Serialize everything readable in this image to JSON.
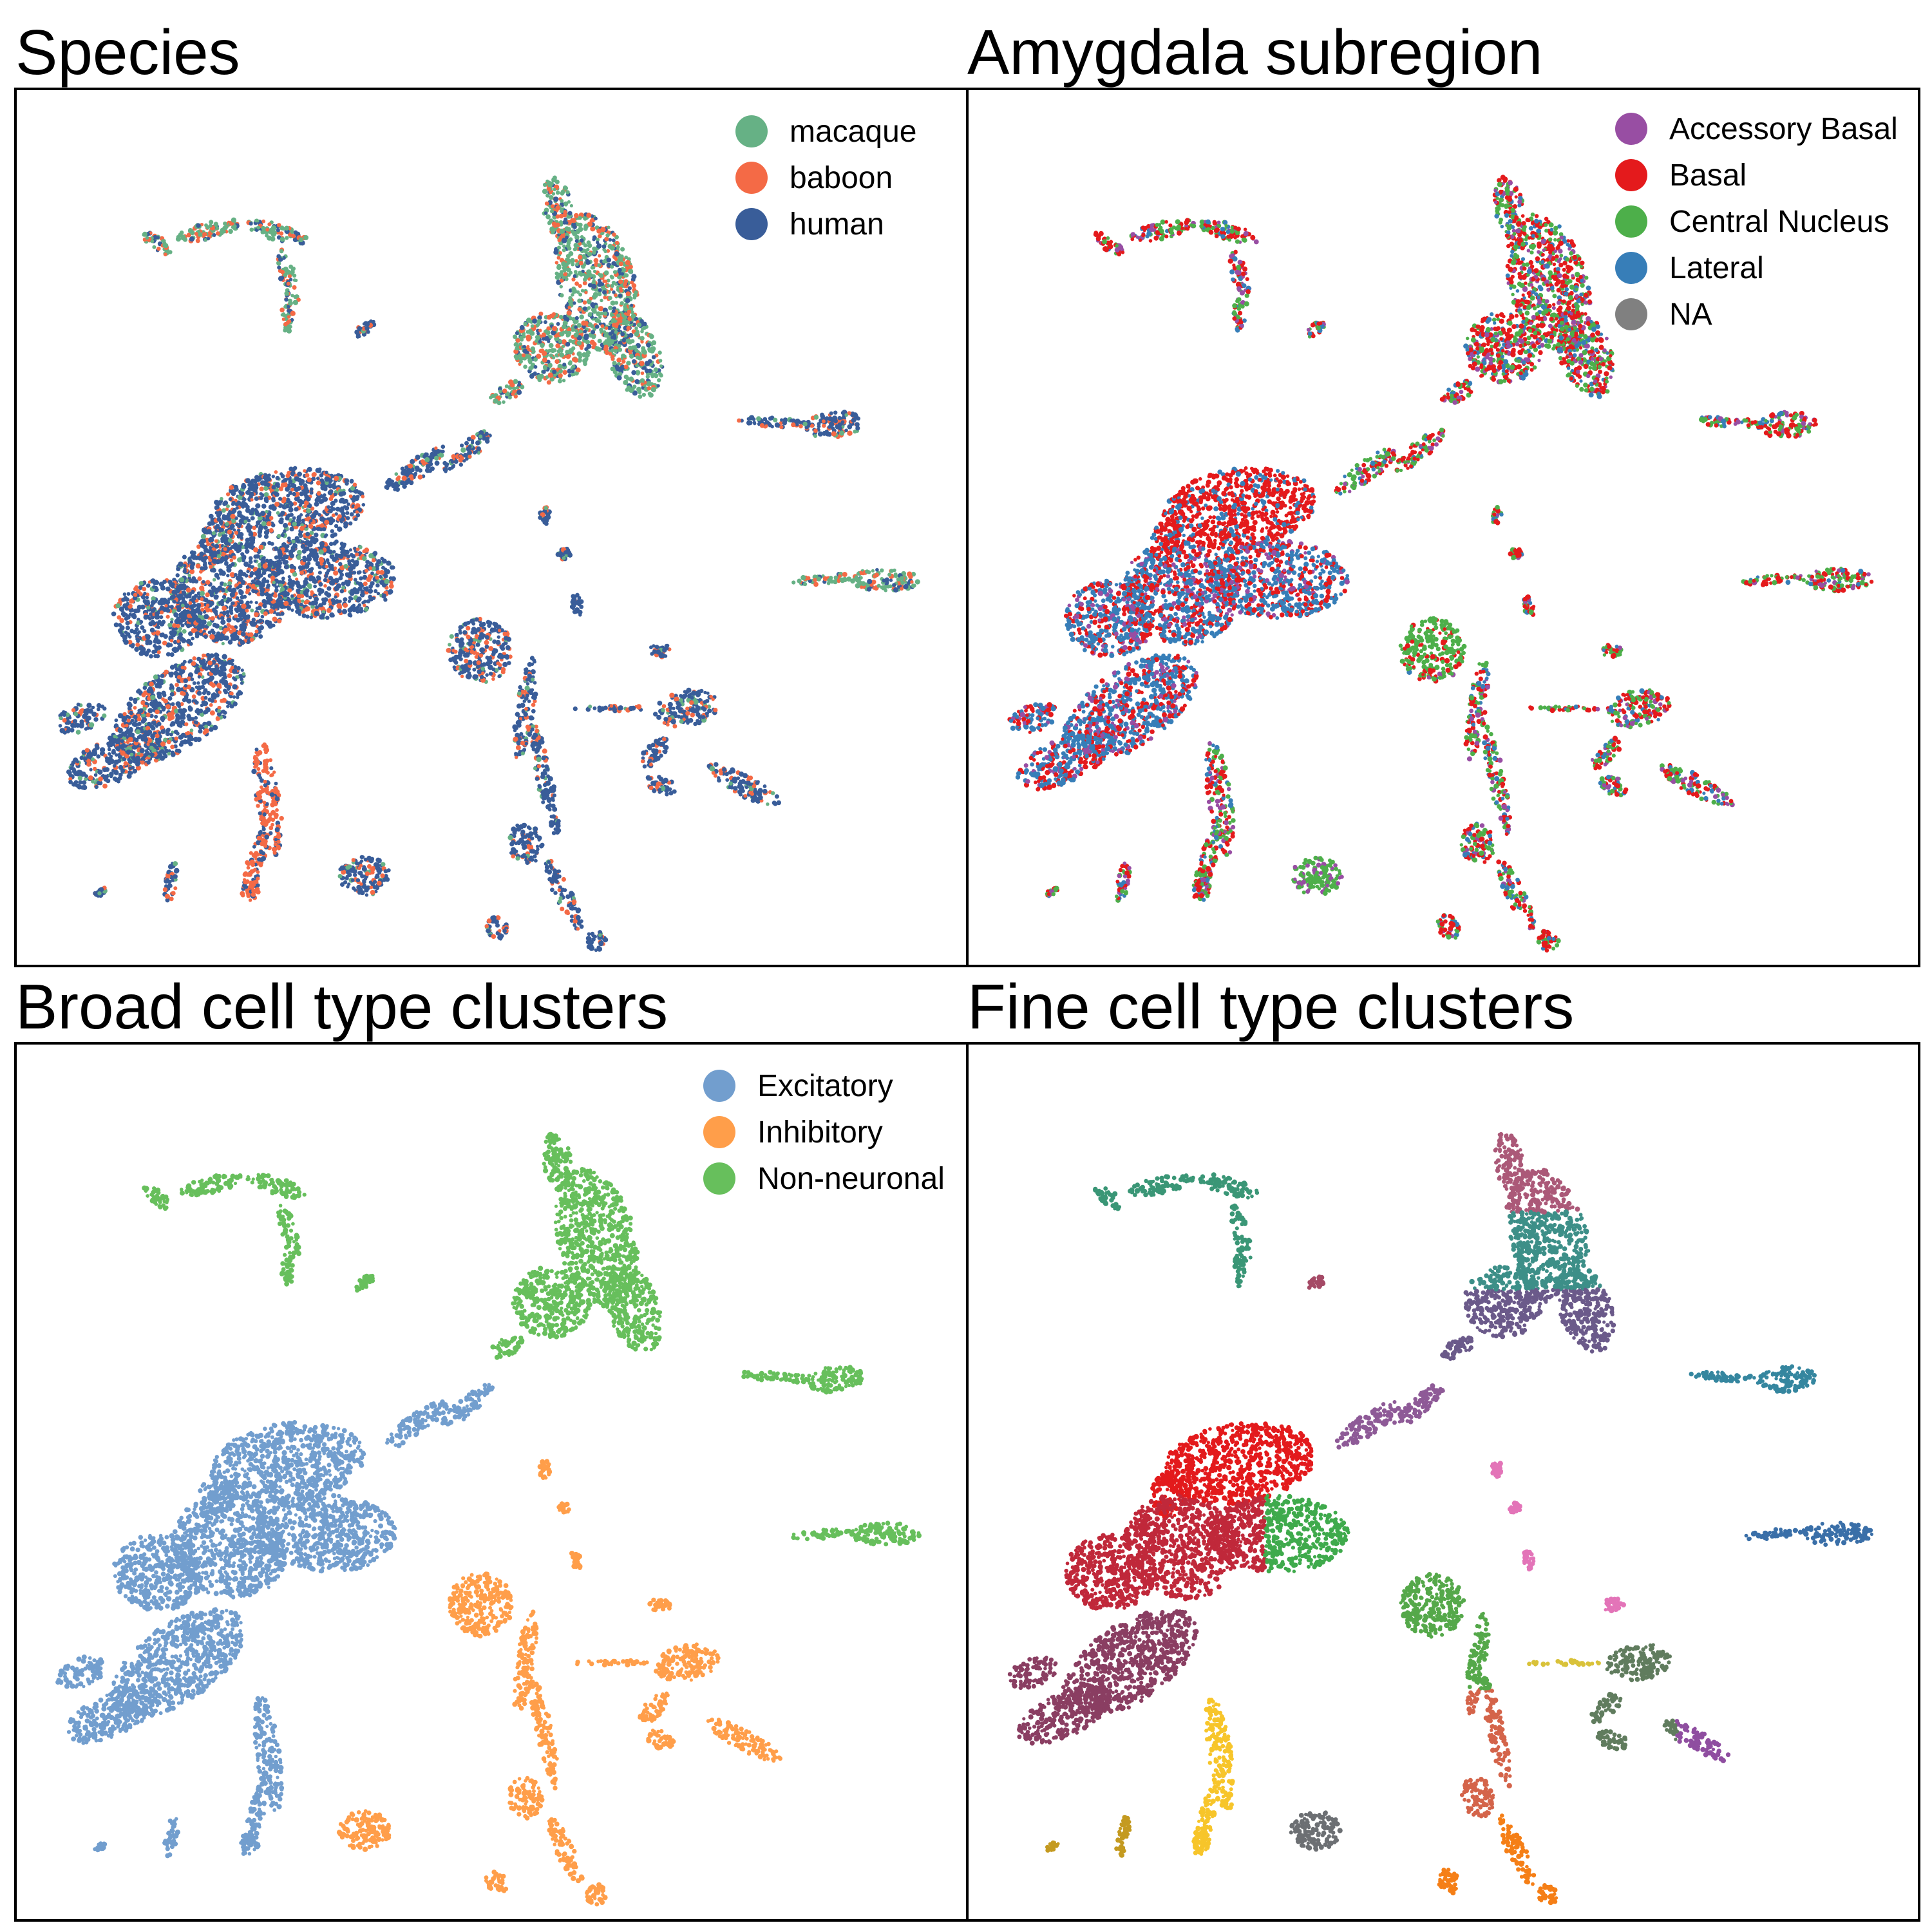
{
  "chart_data": [
    {
      "type": "scatter",
      "title": "Species",
      "legend_position": "top-right",
      "legend": [
        {
          "label": "macaque",
          "color": "#66b185"
        },
        {
          "label": "baboon",
          "color": "#f46a46"
        },
        {
          "label": "human",
          "color": "#395d99"
        }
      ]
    },
    {
      "type": "scatter",
      "title": "Amygdala subregion",
      "legend_position": "top-right",
      "legend": [
        {
          "label": "Accessory Basal",
          "color": "#984ea3"
        },
        {
          "label": "Basal",
          "color": "#e41a1c"
        },
        {
          "label": "Central Nucleus",
          "color": "#4daf4a"
        },
        {
          "label": "Lateral",
          "color": "#377eb8"
        },
        {
          "label": "NA",
          "color": "#808080"
        }
      ]
    },
    {
      "type": "scatter",
      "title": "Broad cell type clusters",
      "legend_position": "top-right",
      "legend": [
        {
          "label": "Excitatory",
          "color": "#729ece"
        },
        {
          "label": "Inhibitory",
          "color": "#ff9e4a"
        },
        {
          "label": "Non-neuronal",
          "color": "#67bf5c"
        }
      ]
    },
    {
      "type": "scatter",
      "title": "Fine cell type clusters",
      "legend_position": "none",
      "legend": []
    }
  ]
}
